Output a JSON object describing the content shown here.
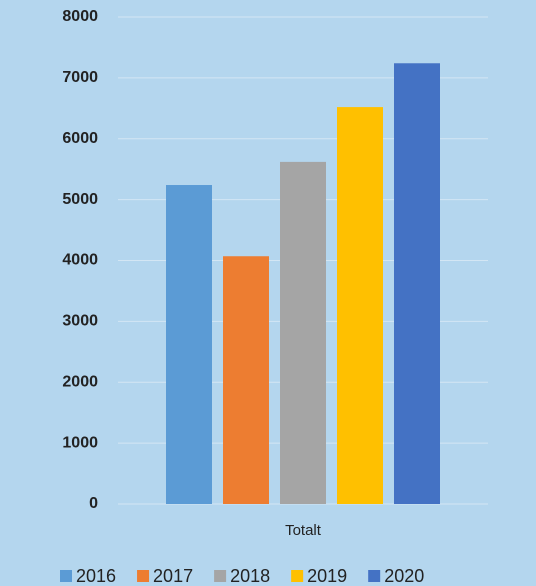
{
  "chart_data": {
    "type": "bar",
    "categories": [
      "Totalt"
    ],
    "series": [
      {
        "name": "2016",
        "color": "#5b9bd5",
        "values": [
          5240
        ]
      },
      {
        "name": "2017",
        "color": "#ed7d31",
        "values": [
          4070
        ]
      },
      {
        "name": "2018",
        "color": "#a5a5a5",
        "values": [
          5620
        ]
      },
      {
        "name": "2019",
        "color": "#ffc000",
        "values": [
          6520
        ]
      },
      {
        "name": "2020",
        "color": "#4472c4",
        "values": [
          7240
        ]
      }
    ],
    "ylim": [
      0,
      8000
    ],
    "yticks": [
      0,
      1000,
      2000,
      3000,
      4000,
      5000,
      6000,
      7000,
      8000
    ],
    "grid": true,
    "legend": "bottom"
  }
}
